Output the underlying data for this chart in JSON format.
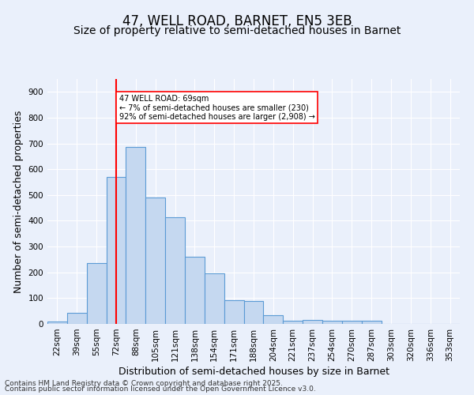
{
  "title": "47, WELL ROAD, BARNET, EN5 3EB",
  "subtitle": "Size of property relative to semi-detached houses in Barnet",
  "xlabel": "Distribution of semi-detached houses by size in Barnet",
  "ylabel": "Number of semi-detached properties",
  "categories": [
    "22sqm",
    "39sqm",
    "55sqm",
    "72sqm",
    "88sqm",
    "105sqm",
    "121sqm",
    "138sqm",
    "154sqm",
    "171sqm",
    "188sqm",
    "204sqm",
    "221sqm",
    "237sqm",
    "254sqm",
    "270sqm",
    "287sqm",
    "303sqm",
    "320sqm",
    "336sqm",
    "353sqm"
  ],
  "values": [
    8,
    42,
    235,
    570,
    685,
    490,
    415,
    260,
    195,
    92,
    90,
    35,
    13,
    16,
    11,
    11,
    12,
    1,
    0,
    0,
    0
  ],
  "bar_color": "#c5d8f0",
  "bar_edge_color": "#5b9bd5",
  "highlight_index": 3,
  "vline_color": "red",
  "annotation_text": "47 WELL ROAD: 69sqm\n← 7% of semi-detached houses are smaller (230)\n92% of semi-detached houses are larger (2,908) →",
  "annotation_box_color": "white",
  "annotation_box_edge": "red",
  "ylim": [
    0,
    950
  ],
  "yticks": [
    0,
    100,
    200,
    300,
    400,
    500,
    600,
    700,
    800,
    900
  ],
  "footer1": "Contains HM Land Registry data © Crown copyright and database right 2025.",
  "footer2": "Contains public sector information licensed under the Open Government Licence v3.0.",
  "bg_color": "#eaf0fb",
  "plot_bg_color": "#eaf0fb",
  "title_fontsize": 12,
  "subtitle_fontsize": 10,
  "tick_fontsize": 7.5,
  "label_fontsize": 9,
  "footer_fontsize": 6.5
}
